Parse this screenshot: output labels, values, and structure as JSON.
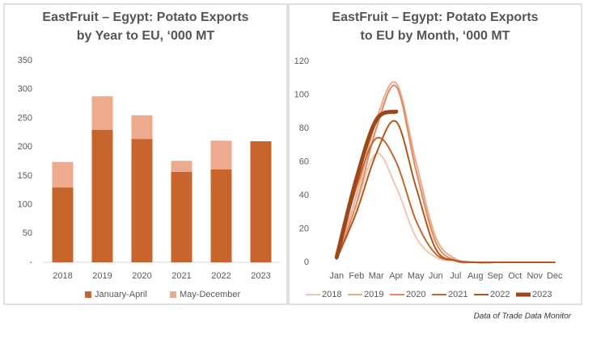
{
  "chart_data": [
    {
      "type": "stacked_bar",
      "title": [
        "EastFruit – Egypt: Potato Exports",
        "by Year to EU, ‘000 MT"
      ],
      "categories": [
        "2018",
        "2019",
        "2020",
        "2021",
        "2022",
        "2023"
      ],
      "series": [
        {
          "name": "January-April",
          "color": "#c8652c",
          "values": [
            130,
            230,
            214,
            157,
            161,
            210
          ]
        },
        {
          "name": "May-December",
          "color": "#eeaa8c",
          "values": [
            44,
            58,
            41,
            19,
            50,
            null
          ]
        }
      ],
      "ylim": [
        0,
        350
      ],
      "yticks": [
        {
          "value": 0,
          "label": "-"
        },
        50,
        100,
        150,
        200,
        250,
        300,
        350
      ],
      "legend": "bottom"
    },
    {
      "type": "line",
      "title": [
        "EastFruit – Egypt: Potato Exports",
        "to EU by Month, ‘000 MT"
      ],
      "categories": [
        "Jan",
        "Feb",
        "Mar",
        "Apr",
        "May",
        "Jun",
        "Jul",
        "Aug",
        "Sep",
        "Oct",
        "Nov",
        "Dec"
      ],
      "series": [
        {
          "name": "2018",
          "color": "#f3c6b1",
          "line_width": 2,
          "values": [
            2,
            35,
            65,
            45,
            15,
            3,
            1,
            0,
            0,
            0,
            0,
            0
          ]
        },
        {
          "name": "2019",
          "color": "#eeaa8c",
          "line_width": 2,
          "values": [
            3,
            40,
            85,
            107,
            60,
            15,
            2,
            0,
            0,
            0,
            0,
            0
          ]
        },
        {
          "name": "2020",
          "color": "#e08b5e",
          "line_width": 2,
          "values": [
            2,
            35,
            80,
            105,
            55,
            12,
            1,
            0,
            0,
            0,
            0,
            0
          ]
        },
        {
          "name": "2021",
          "color": "#c8652c",
          "line_width": 2,
          "values": [
            3,
            45,
            74,
            60,
            25,
            5,
            1,
            0,
            0,
            0,
            0,
            0
          ]
        },
        {
          "name": "2022",
          "color": "#b3561e",
          "line_width": 2,
          "values": [
            2,
            30,
            65,
            84,
            45,
            8,
            1,
            0,
            0,
            0,
            0,
            0
          ]
        },
        {
          "name": "2023",
          "color": "#9c4719",
          "line_width": 5,
          "values": [
            3,
            50,
            85,
            90,
            null,
            null,
            null,
            null,
            null,
            null,
            null,
            null
          ]
        }
      ],
      "ylim": [
        0,
        120
      ],
      "yticks": [
        0,
        20,
        40,
        60,
        80,
        100,
        120
      ],
      "legend": "bottom"
    }
  ],
  "source": "Data of Trade Data Monitor"
}
